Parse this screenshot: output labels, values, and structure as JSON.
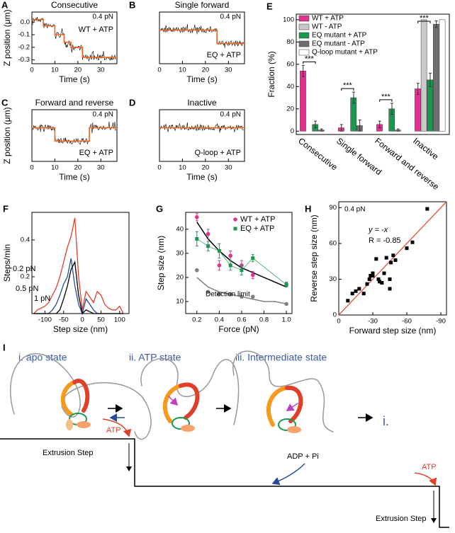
{
  "chart_data": [
    {
      "type": "line",
      "panel": "A",
      "title": "Consecutive",
      "xlabel": "Time (s)",
      "ylabel": "Z position (μm)",
      "annotations": [
        "0.4 pN",
        "WT + ATP"
      ],
      "x": [
        0,
        5,
        5,
        10,
        10,
        14,
        14,
        17,
        17,
        22,
        22,
        37
      ],
      "series": [
        {
          "color": "#f26522",
          "values": [
            0.02,
            0.02,
            -0.03,
            -0.03,
            -0.1,
            -0.1,
            -0.16,
            -0.16,
            -0.2,
            -0.2,
            -0.28,
            -0.28
          ]
        }
      ],
      "xlim": [
        0,
        37
      ],
      "xticks": [
        0,
        10,
        20,
        30
      ],
      "ylim": [
        -0.33,
        0.08
      ],
      "yticks": [
        {
          "value": 0,
          "label": "0.0"
        },
        -0.1,
        -0.2,
        -0.3
      ]
    },
    {
      "type": "line",
      "panel": "B",
      "title": "Single forward",
      "xlabel": "Time (s)",
      "annotations": [
        "0.4 pN",
        "EQ + ATP"
      ],
      "x": [
        0,
        25,
        25,
        37
      ],
      "series": [
        {
          "color": "#f26522",
          "values": [
            0,
            0,
            -0.06,
            -0.06
          ]
        }
      ],
      "xlim": [
        0,
        37
      ],
      "xticks": [
        0,
        10,
        20,
        30
      ],
      "ylim": [
        -0.15,
        0.08
      ]
    },
    {
      "type": "line",
      "panel": "C",
      "title": "Forward and reverse",
      "xlabel": "Time (s)",
      "ylabel": "Z position (μm)",
      "annotations": [
        "0.4 pN",
        "EQ + ATP"
      ],
      "x": [
        0,
        10,
        10,
        25,
        25,
        37
      ],
      "series": [
        {
          "color": "#f26522",
          "values": [
            0,
            0,
            -0.06,
            -0.06,
            0,
            0
          ]
        }
      ],
      "xlim": [
        0,
        37
      ],
      "xticks": [
        0,
        10,
        20,
        30
      ],
      "ylim": [
        -0.15,
        0.08
      ]
    },
    {
      "type": "line",
      "panel": "D",
      "title": "Inactive",
      "xlabel": "Time (s)",
      "annotations": [
        "0.4 pN",
        "Q-loop + ATP"
      ],
      "x": [
        0,
        37
      ],
      "series": [
        {
          "color": "#f26522",
          "values": [
            0,
            0
          ]
        }
      ],
      "xlim": [
        0,
        37
      ],
      "xticks": [
        0,
        10,
        20,
        30
      ],
      "ylim": [
        -0.15,
        0.08
      ]
    },
    {
      "type": "bar",
      "panel": "E",
      "ylabel": "Fraction (%)",
      "categories": [
        "Consecutive",
        "Single forward",
        "Forward and reverse",
        "Inactive"
      ],
      "series": [
        {
          "name": "WT + ATP",
          "color": "#e0338f",
          "values": [
            54,
            3,
            6,
            38
          ],
          "errors": [
            5,
            3,
            3,
            5
          ]
        },
        {
          "name": "WT - ATP",
          "color": "#c8c8c8",
          "values": [
            0,
            0,
            0,
            100
          ]
        },
        {
          "name": "EQ mutant + ATP",
          "color": "#1a9850",
          "values": [
            6,
            30,
            20,
            46
          ],
          "errors": [
            3,
            5,
            5,
            6
          ]
        },
        {
          "name": "EQ mutant - ATP",
          "color": "#6e6e6e",
          "values": [
            1,
            5,
            1,
            96
          ],
          "errors": [
            1,
            5,
            1,
            3
          ]
        },
        {
          "name": "Q-loop mutant + ATP",
          "color": "#ffffff",
          "values": [
            0,
            0,
            0,
            100
          ]
        }
      ],
      "annotations": [
        "***",
        "***",
        "***",
        "***"
      ],
      "ylim": [
        -3,
        105
      ],
      "yticks": [
        0,
        20,
        40,
        60,
        80,
        100
      ]
    },
    {
      "type": "line",
      "panel": "F",
      "xlabel": "Step size (nm)",
      "ylabel": "Steps/min",
      "x": [
        -130,
        -120,
        -110,
        -100,
        -90,
        -80,
        -70,
        -60,
        -50,
        -40,
        -30,
        -20,
        -10,
        0,
        10,
        20,
        30,
        40,
        50,
        60,
        70,
        80,
        90,
        100,
        110
      ],
      "series": [
        {
          "name": "0.2 pN",
          "color": "#e0402a",
          "values": [
            0,
            0.02,
            0.03,
            0.04,
            0.06,
            0.1,
            0.14,
            0.2,
            0.28,
            0.36,
            0.42,
            0.52,
            0.2,
            0.02,
            0.12,
            0.09,
            0.06,
            0.12,
            0.1,
            0.05,
            0.03,
            0.02,
            0.02,
            0.04,
            0
          ]
        },
        {
          "name": "0.5 pN",
          "color": "#2c4a9a",
          "values": [
            0,
            0,
            0,
            0,
            0,
            0.02,
            0.05,
            0.1,
            0.16,
            0.2,
            0.3,
            0.15,
            0.05,
            0,
            0.08,
            0.05,
            0.02,
            0,
            0,
            0,
            0,
            0,
            0,
            0,
            0
          ]
        },
        {
          "name": "1 pN",
          "color": "#000000",
          "values": [
            0,
            0,
            0,
            0,
            0,
            0,
            0,
            0.02,
            0.08,
            0.15,
            0.24,
            0.28,
            0.1,
            0,
            0.02,
            0.01,
            0,
            0,
            0,
            0,
            0,
            0,
            0,
            0,
            0
          ]
        }
      ],
      "xlim": [
        -135,
        125
      ],
      "xticks": [
        -100,
        -50,
        0,
        50,
        100
      ],
      "ylim": [
        0,
        0.55
      ],
      "yticks": [
        0.2,
        0.4
      ]
    },
    {
      "type": "scatter",
      "panel": "G",
      "xlabel": "Force (pN)",
      "ylabel": "Step size (nm)",
      "x": [
        0.2,
        0.3,
        0.4,
        0.5,
        0.6,
        0.7,
        1
      ],
      "series": [
        {
          "name": "WT + ATP",
          "color": "#e0338f",
          "marker": "circle",
          "values": [
            45,
            38,
            25,
            29,
            25,
            21,
            17
          ],
          "errors": [
            1.5,
            2,
            2,
            2,
            2,
            1.5,
            1
          ]
        },
        {
          "name": "EQ + ATP",
          "color": "#1a9850",
          "marker": "square",
          "connect": true,
          "values": [
            36,
            33,
            31,
            25,
            23,
            28,
            17
          ],
          "errors": [
            3,
            2,
            3,
            2,
            2,
            1.5,
            1
          ]
        },
        {
          "name": "Detection limit",
          "color": "#808080",
          "marker": "circle",
          "values": [
            23,
            14,
            13,
            13,
            12,
            12,
            9
          ]
        }
      ],
      "fit_x": [
        0.2,
        0.3,
        0.4,
        0.5,
        0.6,
        0.7,
        0.8,
        0.9,
        1
      ],
      "fits": [
        {
          "color": "#000000",
          "values": [
            43,
            36,
            31,
            27,
            24,
            22,
            20,
            18,
            16
          ]
        },
        {
          "color": "#808080",
          "values": [
            20,
            16,
            14,
            13,
            12,
            11,
            10,
            10,
            9
          ]
        }
      ],
      "xlim": [
        0.1,
        1.05
      ],
      "xticks": [
        0.2,
        0.4,
        0.6,
        0.8,
        {
          "value": 1,
          "label": "1.0"
        }
      ],
      "ylim": [
        5,
        47
      ],
      "yticks": [
        10,
        20,
        30,
        40
      ]
    },
    {
      "type": "scatter",
      "panel": "H",
      "xlabel": "Forward step size (nm)",
      "ylabel": "Reverse step size (nm)",
      "annotations": [
        "0.4 pN",
        "R = -0.85"
      ],
      "reference_line": {
        "label": "y = -x",
        "color": "#e0553a"
      },
      "x": [
        -8,
        -12,
        -15,
        -18,
        -22,
        -25,
        -27,
        -28,
        -30,
        -33,
        -35,
        -36,
        -38,
        -40,
        -42,
        -45,
        -45,
        -46,
        -48,
        -50,
        -60,
        -65,
        -78,
        -30
      ],
      "series": [
        {
          "color": "#000000",
          "marker": "square",
          "values": [
            12,
            18,
            20,
            22,
            18,
            26,
            30,
            33,
            35,
            47,
            30,
            28,
            27,
            35,
            48,
            30,
            22,
            44,
            50,
            46,
            56,
            61,
            89,
            33
          ]
        }
      ],
      "xlim": [
        0,
        -95
      ],
      "xticks": [
        0,
        -30,
        -60,
        -90
      ],
      "ylim": [
        0,
        95
      ],
      "yticks": [
        0,
        30,
        60,
        90
      ]
    }
  ],
  "diagram": {
    "panel": "I",
    "states": [
      "i. apo state",
      "ii. ATP state",
      "iii. Intermediate state",
      "i."
    ],
    "timeline": [
      "ATP",
      "Extrusion Step",
      "ADP + Pi",
      "ATP",
      "Extrusion Step"
    ]
  }
}
